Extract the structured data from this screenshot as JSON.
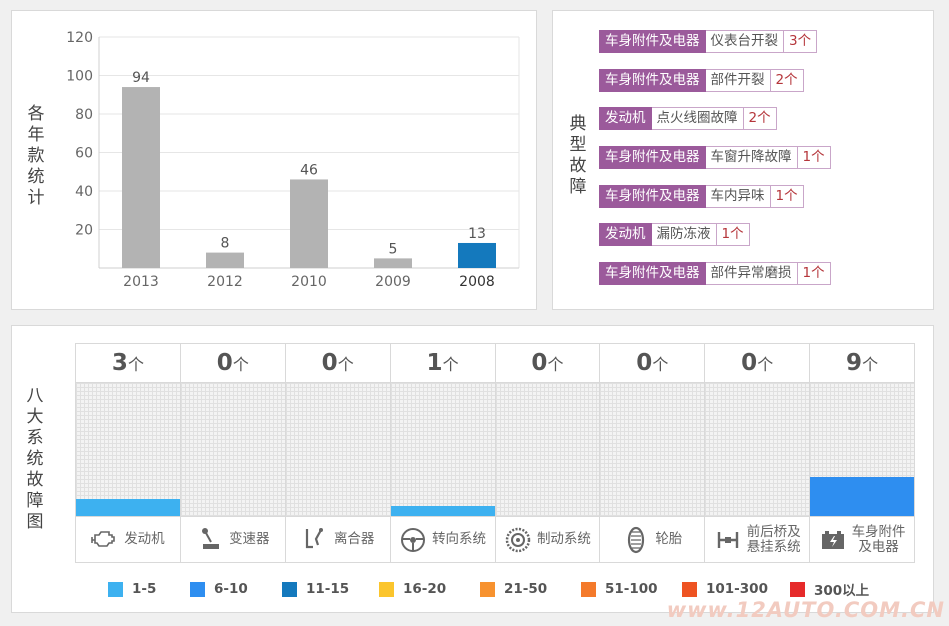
{
  "year_panel": {
    "label": "各年款统计",
    "chart_data": {
      "type": "bar",
      "categories": [
        "2013",
        "2012",
        "2010",
        "2009",
        "2008"
      ],
      "values": [
        94,
        8,
        46,
        5,
        13
      ],
      "ylim": [
        0,
        120
      ],
      "yticks": [
        20,
        40,
        60,
        80,
        100,
        120
      ],
      "highlight_index": 4,
      "bar_color": "#b3b3b3",
      "highlight_color": "#1479bd",
      "grid": true
    }
  },
  "fault_panel": {
    "label": "典型故障",
    "items": [
      {
        "category": "车身附件及电器",
        "name": "仪表台开裂",
        "count": "3个"
      },
      {
        "category": "车身附件及电器",
        "name": "部件开裂",
        "count": "2个"
      },
      {
        "category": "发动机",
        "name": "点火线圈故障",
        "count": "2个"
      },
      {
        "category": "车身附件及电器",
        "name": "车窗升降故障",
        "count": "1个"
      },
      {
        "category": "车身附件及电器",
        "name": "车内异味",
        "count": "1个"
      },
      {
        "category": "发动机",
        "name": "漏防冻液",
        "count": "1个"
      },
      {
        "category": "车身附件及电器",
        "name": "部件异常磨损",
        "count": "1个"
      }
    ]
  },
  "system_panel": {
    "label": "八大系统故障图",
    "unit": "个",
    "systems": [
      {
        "label": "发动机",
        "count": "3",
        "level": 3,
        "color": "#3db1f0",
        "icon": "engine-icon"
      },
      {
        "label": "变速器",
        "count": "0",
        "level": 0,
        "color": "",
        "icon": "gear-shift-icon"
      },
      {
        "label": "离合器",
        "count": "0",
        "level": 0,
        "color": "",
        "icon": "clutch-pedal-icon"
      },
      {
        "label": "转向系统",
        "count": "1",
        "level": 1,
        "color": "#3db1f0",
        "icon": "steering-wheel-icon"
      },
      {
        "label": "制动系统",
        "count": "0",
        "level": 0,
        "color": "",
        "icon": "brake-disc-icon"
      },
      {
        "label": "轮胎",
        "count": "0",
        "level": 0,
        "color": "",
        "icon": "tire-icon"
      },
      {
        "label": "前后桥及悬挂系统",
        "count": "0",
        "level": 0,
        "color": "",
        "icon": "axle-icon"
      },
      {
        "label": "车身附件及电器",
        "count": "9",
        "level": 9,
        "color": "#2e8ef0",
        "icon": "battery-icon"
      }
    ],
    "legend": [
      {
        "label": "1-5",
        "color": "#3db1f0"
      },
      {
        "label": "6-10",
        "color": "#2e8ef0"
      },
      {
        "label": "11-15",
        "color": "#1479bd"
      },
      {
        "label": "16-20",
        "color": "#fbc52d"
      },
      {
        "label": "21-50",
        "color": "#f7922f"
      },
      {
        "label": "51-100",
        "color": "#f47a2b"
      },
      {
        "label": "101-300",
        "color": "#ee5322"
      },
      {
        "label": "300以上",
        "color": "#e62a2a"
      }
    ]
  },
  "watermark": "www.12AUTO.COM.CN"
}
